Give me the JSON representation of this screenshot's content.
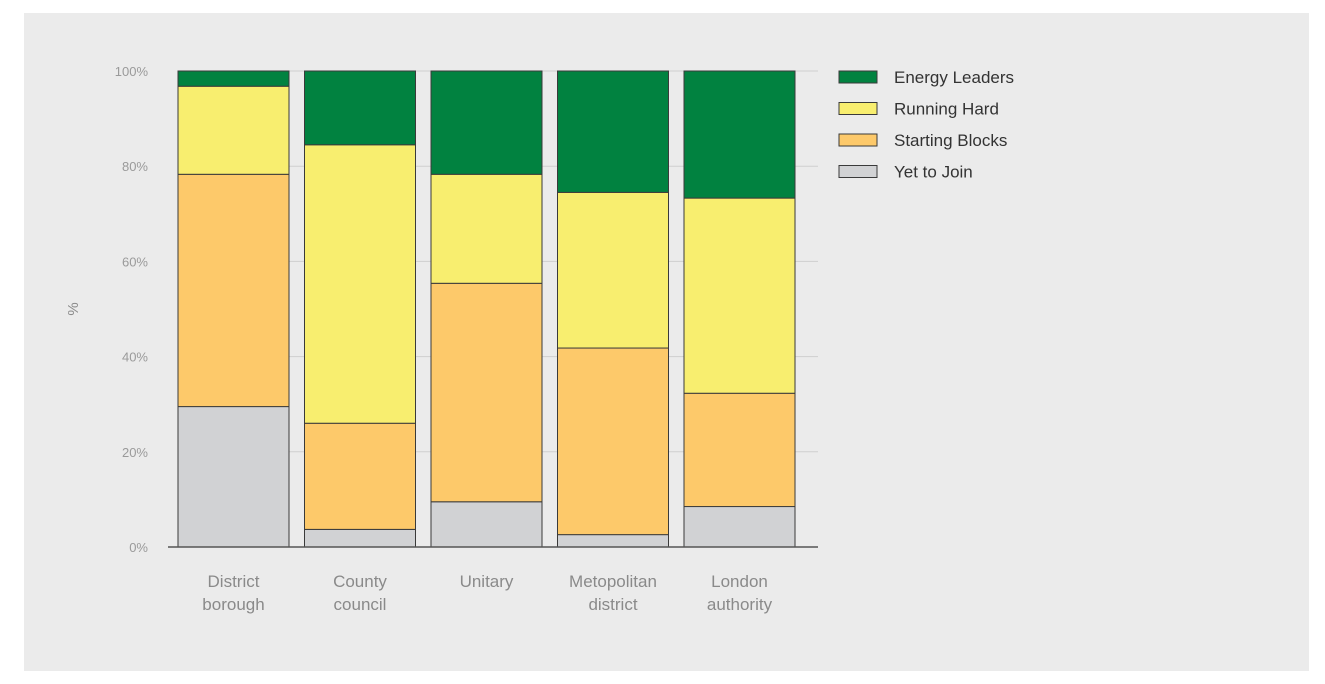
{
  "chart_data": {
    "type": "bar",
    "stacked": true,
    "ylabel": "%",
    "xlabel": "",
    "title": "",
    "ylim": [
      0,
      100
    ],
    "yticks": [
      0,
      20,
      40,
      60,
      80,
      100
    ],
    "ytick_labels": [
      "0%",
      "20%",
      "40%",
      "60%",
      "80%",
      "100%"
    ],
    "grid": true,
    "legend_position": "top-right",
    "categories": [
      [
        "District",
        "borough"
      ],
      [
        "County",
        "council"
      ],
      [
        "Unitary"
      ],
      [
        "Metopolitan",
        "district"
      ],
      [
        "London",
        "authority"
      ]
    ],
    "series": [
      {
        "name": "Yet to Join",
        "color": "#d1d2d4",
        "values": [
          29.5,
          3.7,
          9.5,
          2.6,
          8.5
        ]
      },
      {
        "name": "Starting Blocks",
        "color": "#fdc96a",
        "values": [
          48.8,
          22.3,
          45.9,
          39.2,
          23.8
        ]
      },
      {
        "name": "Running Hard",
        "color": "#f8ee6f",
        "values": [
          18.5,
          58.5,
          22.9,
          32.7,
          41.0
        ]
      },
      {
        "name": "Energy Leaders",
        "color": "#018240",
        "values": [
          3.2,
          15.5,
          21.7,
          25.5,
          26.7
        ]
      }
    ],
    "legend_order": [
      "Energy Leaders",
      "Running Hard",
      "Starting Blocks",
      "Yet to Join"
    ]
  }
}
